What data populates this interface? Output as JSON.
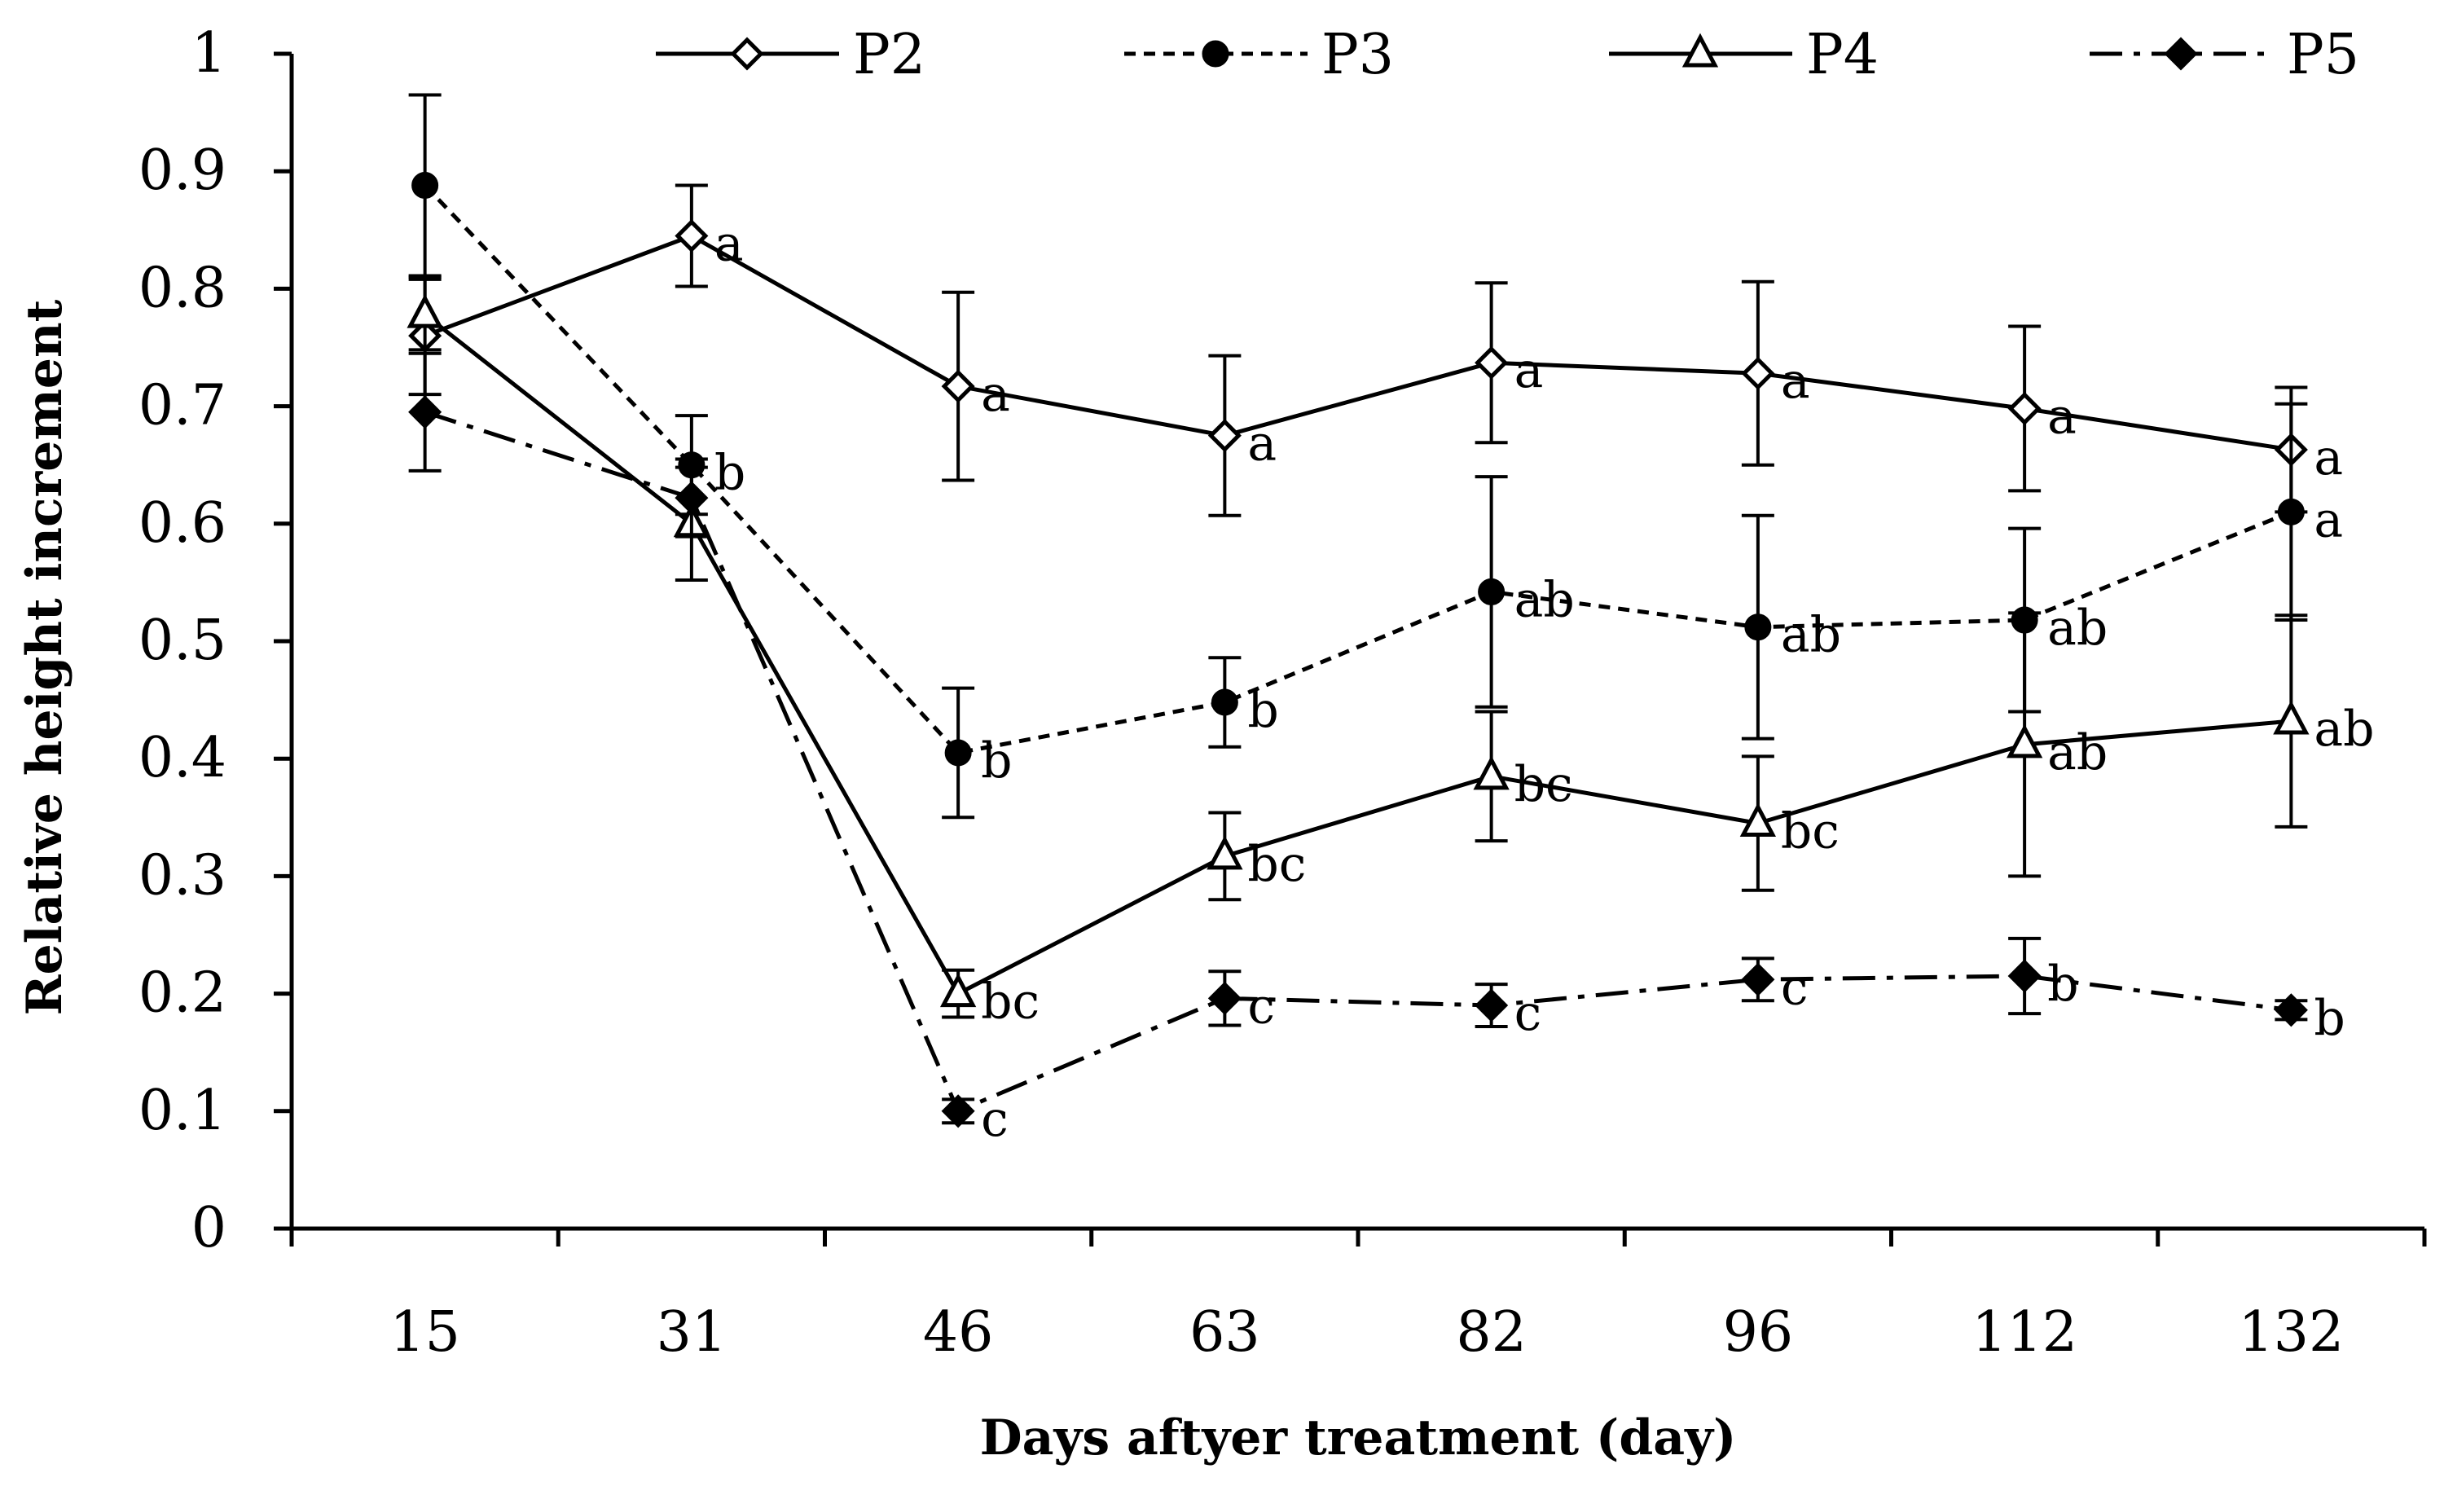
{
  "chart_data": {
    "type": "line",
    "title": "",
    "xlabel": "Days aftyer treatment (day)",
    "ylabel": "Relative height increment",
    "categories": [
      "15",
      "31",
      "46",
      "63",
      "82",
      "96",
      "112",
      "132"
    ],
    "ylim": [
      0,
      1
    ],
    "yticks": [
      "0",
      "0.1",
      "0.2",
      "0.3",
      "0.4",
      "0.5",
      "0.6",
      "0.7",
      "0.8",
      "0.9",
      "1"
    ],
    "grid": false,
    "legend_position": "top",
    "series": [
      {
        "name": "P2",
        "line_style": "solid",
        "marker": "open-diamond",
        "values": [
          0.76,
          0.845,
          0.717,
          0.675,
          0.737,
          0.728,
          0.698,
          0.663
        ],
        "errors": [
          0.05,
          0.043,
          0.08,
          0.068,
          0.068,
          0.078,
          0.07,
          0.053
        ],
        "labels": [
          "",
          "a",
          "a",
          "a",
          "a",
          "a",
          "a",
          "a"
        ]
      },
      {
        "name": "P3",
        "line_style": "dashed",
        "marker": "filled-circle",
        "values": [
          0.888,
          0.65,
          0.405,
          0.448,
          0.542,
          0.512,
          0.518,
          0.61
        ],
        "errors": [
          0.077,
          0.042,
          0.055,
          0.038,
          0.098,
          0.095,
          0.078,
          0.092
        ],
        "labels": [
          "",
          "b",
          "b",
          "b",
          "ab",
          "ab",
          "ab",
          "a"
        ]
      },
      {
        "name": "P4",
        "line_style": "solid",
        "marker": "open-triangle",
        "values": [
          0.778,
          0.6,
          0.2,
          0.317,
          0.385,
          0.345,
          0.412,
          0.432
        ],
        "errors": [
          0.03,
          0.048,
          0.02,
          0.037,
          0.055,
          0.057,
          0.112,
          0.09
        ],
        "labels": [
          "",
          "",
          "bc",
          "bc",
          "bc",
          "bc",
          "ab",
          "ab"
        ]
      },
      {
        "name": "P5",
        "line_style": "dashdot",
        "marker": "filled-diamond",
        "values": [
          0.695,
          0.622,
          0.1,
          0.196,
          0.19,
          0.212,
          0.215,
          0.186
        ],
        "errors": [
          0.05,
          0.033,
          0.01,
          0.023,
          0.018,
          0.018,
          0.032,
          0.008
        ],
        "labels": [
          "",
          "",
          "c",
          "c",
          "c",
          "c",
          "b",
          "b"
        ]
      }
    ]
  }
}
